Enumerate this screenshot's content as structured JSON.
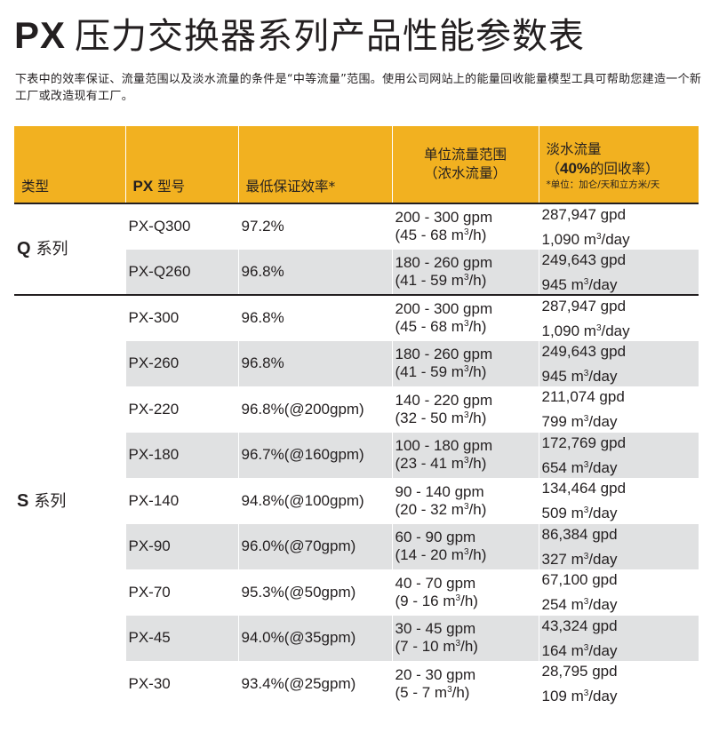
{
  "title": {
    "prefix": "PX",
    "text": "压力交换器系列产品性能参数表"
  },
  "intro": "下表中的效率保证、流量范围以及淡水流量的条件是“中等流量”范围。使用公司网站上的能量回收能量模型工具可帮助您建造一个新工厂或改造现有工厂。",
  "table": {
    "headers": {
      "type": "类型",
      "model_prefix": "PX",
      "model": " 型号",
      "efficiency": "最低保证效率*",
      "flow_line1": "单位流量范围",
      "flow_line2": "（浓水流量）",
      "fresh_line1": "淡水流量",
      "fresh_open": "（",
      "fresh_pct": "40%",
      "fresh_rest": "的回收率）",
      "fresh_unit": "*单位：加仑/天和立方米/天"
    },
    "groups": [
      {
        "letter": "Q",
        "label": "系列"
      },
      {
        "letter": "S",
        "label": "系列"
      }
    ],
    "rows": [
      {
        "model": "PX-Q300",
        "efficiency": "97.2%",
        "gpm": "200 - 300 gpm",
        "m3h_open": "(45 - 68 m",
        "m3h_close": "/h)",
        "gpd": "287,947 gpd",
        "day": "1,090 m"
      },
      {
        "model": "PX-Q260",
        "efficiency": "96.8%",
        "gpm": "180 - 260 gpm",
        "m3h_open": "(41 - 59 m",
        "m3h_close": "/h)",
        "gpd": "249,643 gpd",
        "day": "945 m"
      },
      {
        "model": "PX-300",
        "efficiency": "96.8%",
        "gpm": "200 - 300 gpm",
        "m3h_open": "(45 - 68 m",
        "m3h_close": "/h)",
        "gpd": "287,947 gpd",
        "day": "1,090 m"
      },
      {
        "model": "PX-260",
        "efficiency": "96.8%",
        "gpm": "180 - 260 gpm",
        "m3h_open": "(41 - 59 m",
        "m3h_close": "/h)",
        "gpd": "249,643 gpd",
        "day": "945 m"
      },
      {
        "model": "PX-220",
        "efficiency": "96.8%(@200gpm)",
        "gpm": "140 - 220 gpm",
        "m3h_open": "(32 - 50 m",
        "m3h_close": "/h)",
        "gpd": "211,074 gpd",
        "day": "799 m"
      },
      {
        "model": "PX-180",
        "efficiency": "96.7%(@160gpm)",
        "gpm": "100 - 180 gpm",
        "m3h_open": "(23 - 41 m",
        "m3h_close": "/h)",
        "gpd": "172,769 gpd",
        "day": "654 m"
      },
      {
        "model": "PX-140",
        "efficiency": "94.8%(@100gpm)",
        "gpm": "90 - 140 gpm",
        "m3h_open": "(20 - 32 m",
        "m3h_close": "/h)",
        "gpd": "134,464 gpd",
        "day": "509 m"
      },
      {
        "model": "PX-90",
        "efficiency": "96.0%(@70gpm)",
        "gpm": "60 - 90 gpm",
        "m3h_open": "(14 - 20 m",
        "m3h_close": "/h)",
        "gpd": "86,384 gpd",
        "day": "327 m"
      },
      {
        "model": "PX-70",
        "efficiency": "95.3%(@50gpm)",
        "gpm": "40 - 70 gpm",
        "m3h_open": "(9 - 16 m",
        "m3h_close": "/h)",
        "gpd": "67,100 gpd",
        "day": "254 m"
      },
      {
        "model": "PX-45",
        "efficiency": "94.0%(@35gpm)",
        "gpm": "30 - 45 gpm",
        "m3h_open": "(7 - 10 m",
        "m3h_close": "/h)",
        "gpd": "43,324 gpd",
        "day": "164 m"
      },
      {
        "model": "PX-30",
        "efficiency": "93.4%(@25gpm)",
        "gpm": "20 - 30 gpm",
        "m3h_open": "(5 - 7 m",
        "m3h_close": "/h)",
        "gpd": "28,795 gpd",
        "day": "109 m"
      }
    ],
    "sup3": "3",
    "day_suffix": "/day"
  },
  "colors": {
    "header_bg": "#f2b120",
    "row_shade": "#e0e1e2",
    "text": "#231f20"
  }
}
